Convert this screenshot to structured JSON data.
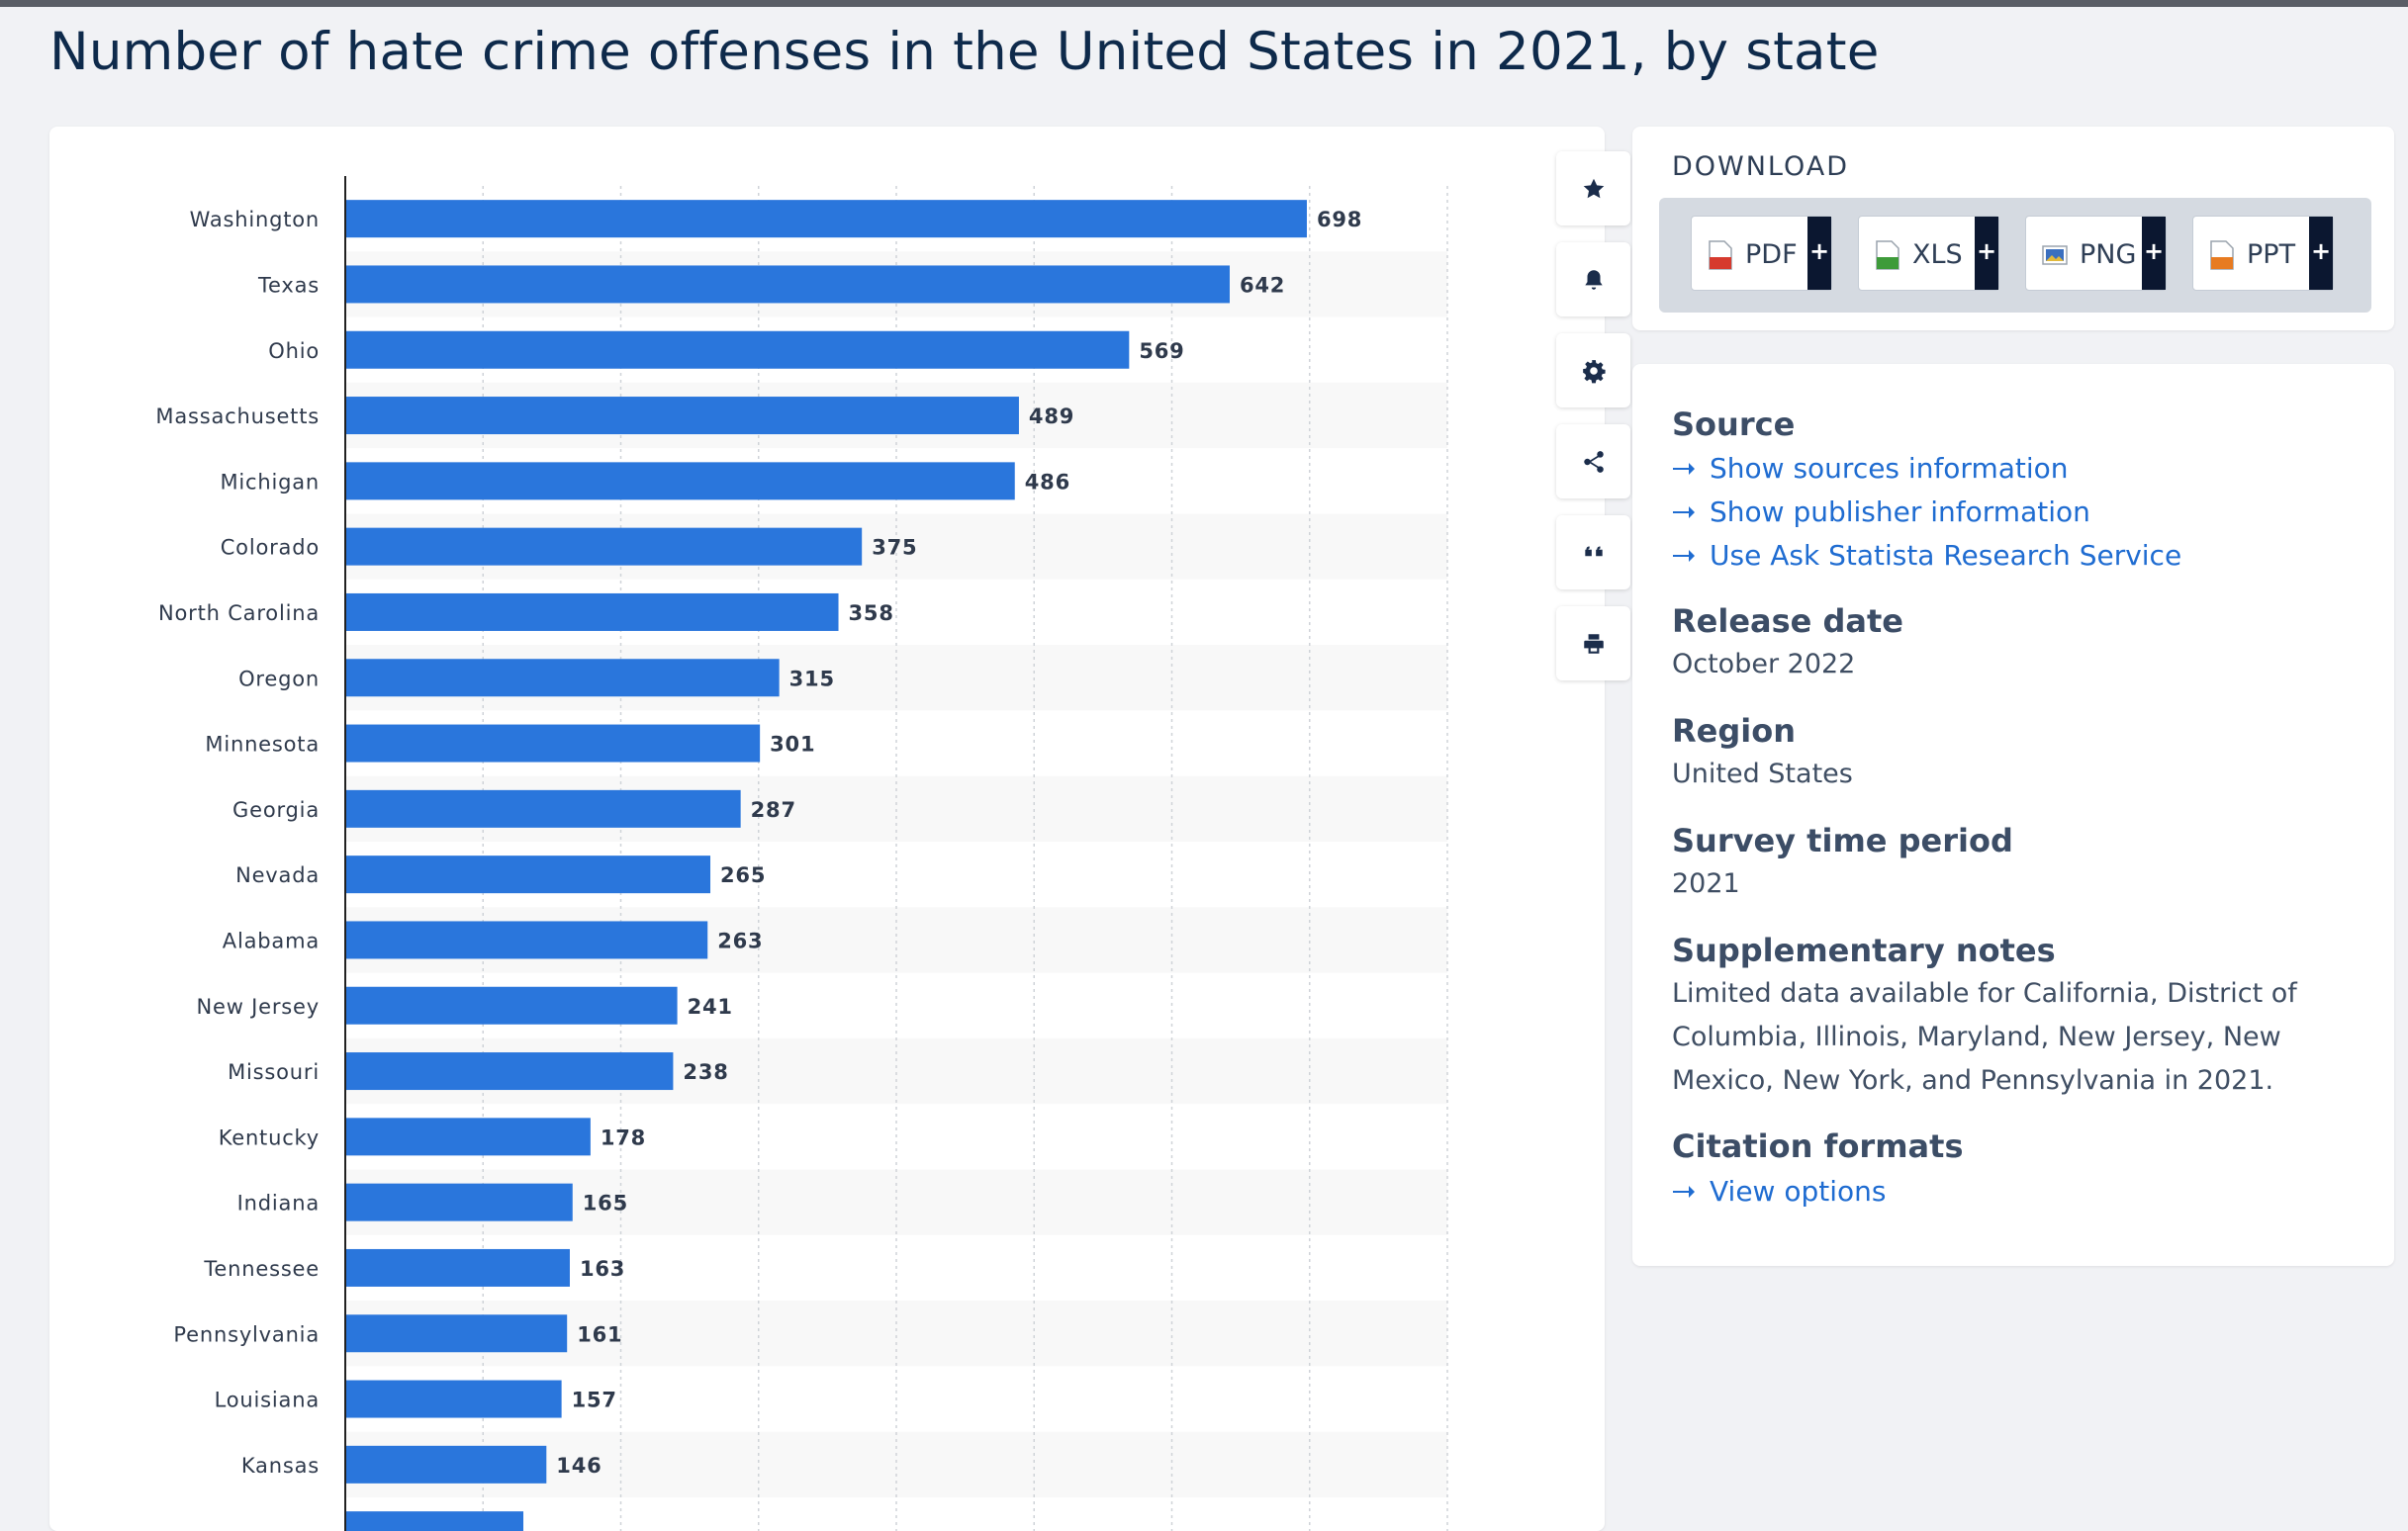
{
  "page": {
    "title": "Number of hate crime offenses in the United States in 2021, by state"
  },
  "toolbar": {
    "buttons": [
      {
        "name": "favorite",
        "icon": "star-icon"
      },
      {
        "name": "notification",
        "icon": "bell-icon"
      },
      {
        "name": "settings",
        "icon": "gear-icon"
      },
      {
        "name": "share",
        "icon": "share-icon"
      },
      {
        "name": "cite",
        "icon": "quote-icon"
      },
      {
        "name": "print",
        "icon": "printer-icon"
      }
    ]
  },
  "download": {
    "title": "DOWNLOAD",
    "formats": [
      {
        "label": "PDF",
        "icon": "pdf-file-icon",
        "color": "#d63a2e"
      },
      {
        "label": "XLS",
        "icon": "xls-file-icon",
        "color": "#3e9b3a"
      },
      {
        "label": "PNG",
        "icon": "png-file-icon",
        "color": "#3a6fbf"
      },
      {
        "label": "PPT",
        "icon": "ppt-file-icon",
        "color": "#e77b21"
      }
    ],
    "plus": "+"
  },
  "info": {
    "source_heading": "Source",
    "source_links": [
      "Show sources information",
      "Show publisher information",
      "Use Ask Statista Research Service"
    ],
    "release_heading": "Release date",
    "release_value": "October 2022",
    "region_heading": "Region",
    "region_value": "United States",
    "survey_heading": "Survey time period",
    "survey_value": "2021",
    "notes_heading": "Supplementary notes",
    "notes_value": "Limited data available for California, District of Columbia, Illinois, Maryland, New Jersey, New Mexico, New York, and Pennsylvania in 2021.",
    "citation_heading": "Citation formats",
    "citation_link": "View options"
  },
  "chart_data": {
    "type": "bar",
    "orientation": "horizontal",
    "categories": [
      "Washington",
      "Texas",
      "Ohio",
      "Massachusetts",
      "Michigan",
      "Colorado",
      "North Carolina",
      "Oregon",
      "Minnesota",
      "Georgia",
      "Nevada",
      "Alabama",
      "New Jersey",
      "Missouri",
      "Kentucky",
      "Indiana",
      "Tennessee",
      "Pennsylvania",
      "Louisiana",
      "Kansas"
    ],
    "values": [
      698,
      642,
      569,
      489,
      486,
      375,
      358,
      315,
      301,
      287,
      265,
      263,
      241,
      238,
      178,
      165,
      163,
      161,
      157,
      146
    ],
    "title": "",
    "xlabel": "",
    "ylabel": "",
    "xlim": [
      0,
      800
    ],
    "grid": true,
    "data_labels": true,
    "bar_color": "#2a76dc",
    "band_color": "#f8f8f8"
  }
}
